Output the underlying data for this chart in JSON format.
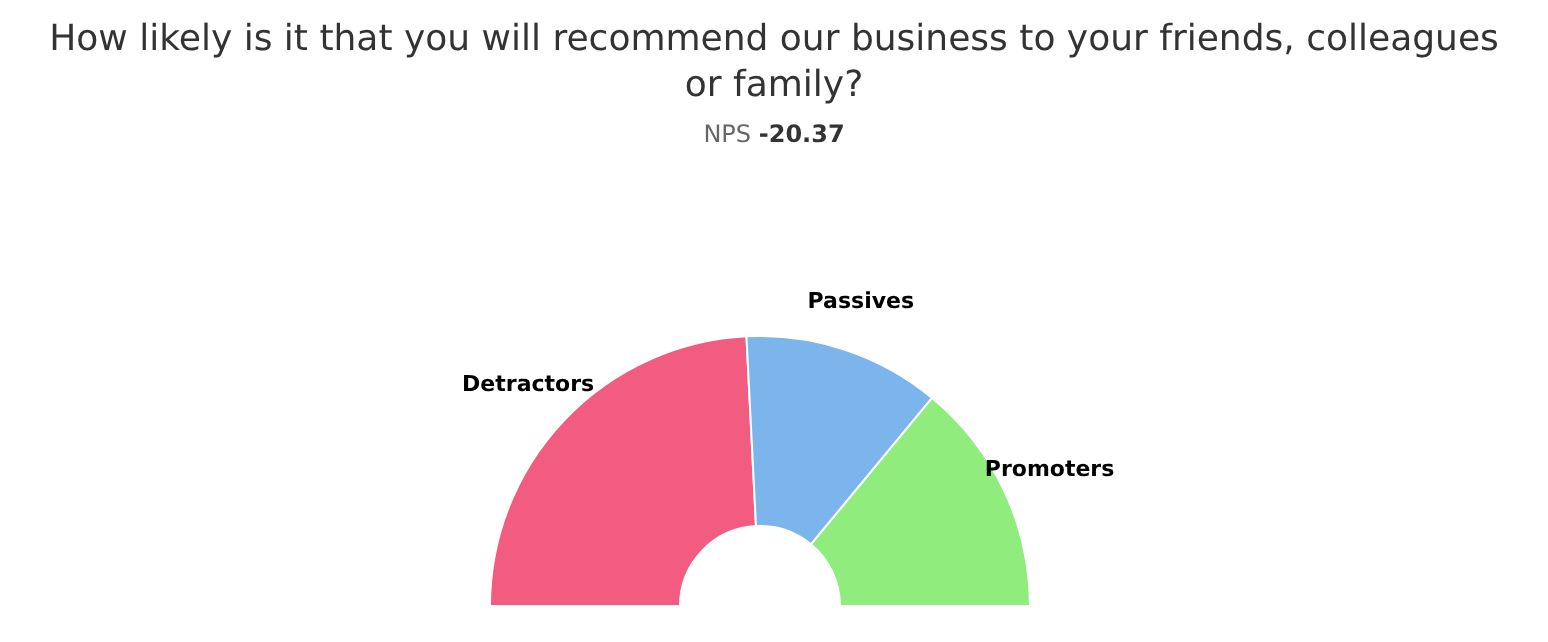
{
  "chart_data": {
    "type": "donut",
    "title": "How likely is it that you will recommend our business to your friends, colleagues or family?",
    "subtitle": "NPS -20.37",
    "categories": [
      "Detractors",
      "Passives",
      "Promoters"
    ],
    "values": [
      48.4,
      23.6,
      28.0
    ],
    "colors": [
      "#f25c80",
      "#7cb5ec",
      "#90ed7d"
    ]
  }
}
